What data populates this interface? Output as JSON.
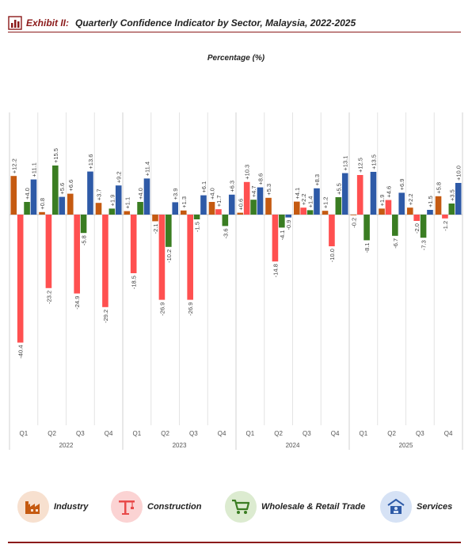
{
  "header": {
    "exhibit": "Exhibit II:",
    "title": "Quarterly Confidence Indicator by Sector, Malaysia, 2022-2025"
  },
  "subtitle": "Percentage (%)",
  "legend": [
    {
      "label": "Industry",
      "icon": "factory-icon",
      "bg": "#f7e0cf",
      "fg": "#c55a11"
    },
    {
      "label": "Construction",
      "icon": "crane-icon",
      "bg": "#fbd3d3",
      "fg": "#e84a4a"
    },
    {
      "label": "Wholesale & Retail Trade",
      "icon": "shopping-cart-icon",
      "bg": "#dcebd0",
      "fg": "#3a7d22"
    },
    {
      "label": "Services",
      "icon": "services-icon",
      "bg": "#d6e2f5",
      "fg": "#2e5aa7"
    }
  ],
  "chart_data": {
    "type": "bar",
    "ylim": [
      -70,
      30
    ],
    "grid": false,
    "quarters": [
      "Q1",
      "Q2",
      "Q3",
      "Q4",
      "Q1",
      "Q2",
      "Q3",
      "Q4",
      "Q1",
      "Q2",
      "Q3",
      "Q4",
      "Q1",
      "Q2",
      "Q3",
      "Q4"
    ],
    "years": [
      "2022",
      "2023",
      "2024",
      "2025"
    ],
    "series": [
      {
        "name": "Industry",
        "color": "#c55a11",
        "values": [
          12.2,
          0.8,
          6.6,
          3.7,
          1.1,
          -2.1,
          1.3,
          4.0,
          0.6,
          5.3,
          4.1,
          1.2,
          -0.2,
          1.9,
          2.2,
          5.8
        ],
        "labels": [
          "+12.2",
          "+0.8",
          "+6.6",
          "+3.7",
          "+1.1",
          "-2.1",
          "+1.3",
          "+4.0",
          "+0.6",
          "+5.3",
          "+4.1",
          "+1.2",
          "-0.2",
          "+1.9",
          "+2.2",
          "+5.8"
        ]
      },
      {
        "name": "Construction",
        "color": "#ff5050",
        "values": [
          -40.4,
          -23.2,
          -24.9,
          -29.2,
          -18.5,
          -26.9,
          -26.9,
          1.7,
          10.3,
          -14.8,
          2.2,
          -10.0,
          12.5,
          4.6,
          -2.0,
          -1.2
        ],
        "labels": [
          "-40.4",
          "-23.2",
          "-24.9",
          "-29.2",
          "-18.5",
          "-26.9",
          "-26.9",
          "+1.7",
          "+10.3",
          "-14.8",
          "+2.2",
          "-10.0",
          "+12.5",
          "+4.6",
          "-2.0",
          "-1.2"
        ]
      },
      {
        "name": "Wholesale & Retail Trade",
        "color": "#3a7d22",
        "values": [
          4.0,
          15.5,
          -5.8,
          1.9,
          4.0,
          -10.2,
          -1.5,
          -3.6,
          4.7,
          -4.1,
          1.4,
          5.5,
          -8.1,
          -6.7,
          -7.3,
          3.5
        ],
        "labels": [
          "+4.0",
          "+15.5",
          "-5.8",
          "+1.9",
          "+4.0",
          "-10.2",
          "-1.5",
          "-3.6",
          "+4.7",
          "-4.1",
          "+1.4",
          "+5.5",
          "-8.1",
          "-6.7",
          "-7.3",
          "+3.5"
        ]
      },
      {
        "name": "Services",
        "color": "#2e5aa7",
        "values": [
          11.1,
          5.6,
          13.6,
          9.2,
          11.4,
          3.9,
          6.1,
          6.3,
          8.6,
          -0.9,
          8.3,
          13.1,
          13.5,
          6.9,
          1.5,
          10.0
        ],
        "labels": [
          "+11.1",
          "+5.6",
          "+13.6",
          "+9.2",
          "+11.4",
          "+3.9",
          "+6.1",
          "+6.3",
          "+8.6",
          "-0.9",
          "+8.3",
          "+13.1",
          "+13.5",
          "+6.9",
          "+1.5",
          "+10.0"
        ]
      }
    ]
  }
}
